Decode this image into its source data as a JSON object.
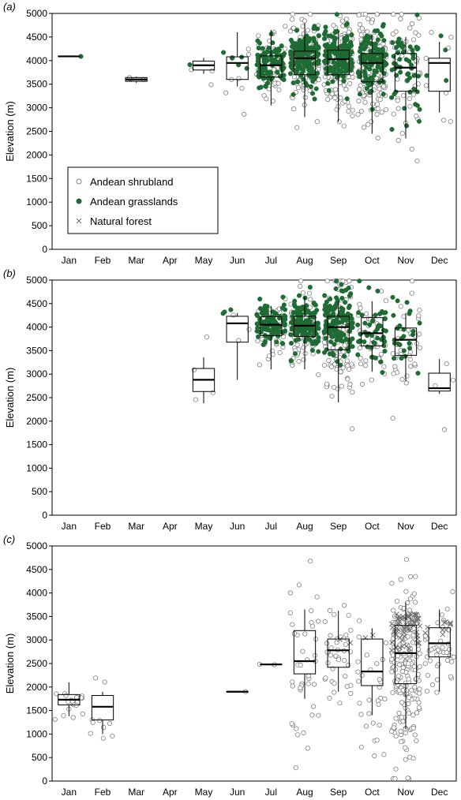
{
  "colors": {
    "grassland": "#1e6b33",
    "shrubland_stroke": "#808080",
    "forest": "#707070",
    "box": "#000000"
  },
  "legend": {
    "entries": [
      {
        "label": "Andean shrubland",
        "marker": "open-circle"
      },
      {
        "label": "Andean grasslands",
        "marker": "filled-circle"
      },
      {
        "label": "Natural forest",
        "marker": "cross"
      }
    ],
    "placement": "inside panel (a), lower-left"
  },
  "chart_data": [
    {
      "type": "box",
      "panel_label": "(a)",
      "ylabel": "Elevation (m)",
      "ylim": [
        0,
        5000
      ],
      "yticks": [
        0,
        500,
        1000,
        1500,
        2000,
        2500,
        3000,
        3500,
        4000,
        4500,
        5000
      ],
      "categories": [
        "Jan",
        "Feb",
        "Mar",
        "Apr",
        "May",
        "Jun",
        "Jul",
        "Aug",
        "Sep",
        "Oct",
        "Nov",
        "Dec"
      ],
      "boxes": [
        {
          "month": "Jan",
          "q1": 4085,
          "median": 4090,
          "q3": 4095,
          "whisker_low": 4085,
          "whisker_high": 4095
        },
        {
          "month": "Mar",
          "q1": 3560,
          "median": 3600,
          "q3": 3640,
          "whisker_low": 3530,
          "whisker_high": 3660
        },
        {
          "month": "May",
          "q1": 3800,
          "median": 3900,
          "q3": 3990,
          "whisker_low": 3720,
          "whisker_high": 4060
        },
        {
          "month": "Jun",
          "q1": 3600,
          "median": 3950,
          "q3": 4080,
          "whisker_low": 3450,
          "whisker_high": 4600
        },
        {
          "month": "Jul",
          "q1": 3650,
          "median": 3900,
          "q3": 4100,
          "whisker_low": 3050,
          "whisker_high": 4650
        },
        {
          "month": "Aug",
          "q1": 3700,
          "median": 4050,
          "q3": 4200,
          "whisker_low": 2800,
          "whisker_high": 4800
        },
        {
          "month": "Sep",
          "q1": 3700,
          "median": 4030,
          "q3": 4220,
          "whisker_low": 2700,
          "whisker_high": 4600
        },
        {
          "month": "Oct",
          "q1": 3550,
          "median": 3950,
          "q3": 4150,
          "whisker_low": 2450,
          "whisker_high": 4550
        },
        {
          "month": "Nov",
          "q1": 3350,
          "median": 3850,
          "q3": 4150,
          "whisker_low": 2350,
          "whisker_high": 4500
        },
        {
          "month": "Dec",
          "q1": 3350,
          "median": 3950,
          "q3": 4050,
          "whisker_low": 2900,
          "whisker_high": 4400
        }
      ],
      "scatter_counts": {
        "shrubland": [
          0,
          0,
          3,
          0,
          3,
          8,
          40,
          130,
          150,
          150,
          50,
          8
        ],
        "grassland": [
          1,
          0,
          0,
          0,
          1,
          5,
          100,
          170,
          160,
          120,
          55,
          4
        ],
        "forest": [
          0,
          0,
          0,
          0,
          0,
          0,
          0,
          0,
          0,
          0,
          0,
          0
        ]
      }
    },
    {
      "type": "box",
      "panel_label": "(b)",
      "ylabel": "Elevation (m)",
      "ylim": [
        0,
        5000
      ],
      "yticks": [
        0,
        500,
        1000,
        1500,
        2000,
        2500,
        3000,
        3500,
        4000,
        4500,
        5000
      ],
      "categories": [
        "Jan",
        "Feb",
        "Mar",
        "Apr",
        "May",
        "Jun",
        "Jul",
        "Aug",
        "Sep",
        "Oct",
        "Nov",
        "Dec"
      ],
      "boxes": [
        {
          "month": "May",
          "q1": 2630,
          "median": 2880,
          "q3": 3120,
          "whisker_low": 2380,
          "whisker_high": 3360
        },
        {
          "month": "Jun",
          "q1": 3680,
          "median": 4080,
          "q3": 4230,
          "whisker_low": 2880,
          "whisker_high": 4300
        },
        {
          "month": "Jul",
          "q1": 3820,
          "median": 4050,
          "q3": 4220,
          "whisker_low": 3100,
          "whisker_high": 4450
        },
        {
          "month": "Aug",
          "q1": 3800,
          "median": 4030,
          "q3": 4230,
          "whisker_low": 3100,
          "whisker_high": 4650
        },
        {
          "month": "Sep",
          "q1": 3520,
          "median": 4000,
          "q3": 4230,
          "whisker_low": 2400,
          "whisker_high": 4550
        },
        {
          "month": "Oct",
          "q1": 3600,
          "median": 3870,
          "q3": 4200,
          "whisker_low": 3050,
          "whisker_high": 4550
        },
        {
          "month": "Nov",
          "q1": 3400,
          "median": 3730,
          "q3": 3980,
          "whisker_low": 2850,
          "whisker_high": 4300
        },
        {
          "month": "Dec",
          "q1": 2640,
          "median": 2700,
          "q3": 3020,
          "whisker_low": 2580,
          "whisker_high": 3320
        }
      ],
      "scatter_counts": {
        "shrubland": [
          0,
          0,
          0,
          0,
          4,
          3,
          40,
          80,
          120,
          40,
          40,
          4
        ],
        "grassland": [
          0,
          0,
          0,
          0,
          0,
          3,
          100,
          140,
          140,
          50,
          25,
          0
        ],
        "forest": [
          0,
          0,
          0,
          0,
          0,
          0,
          0,
          0,
          0,
          0,
          0,
          0
        ]
      }
    },
    {
      "type": "box",
      "panel_label": "(c)",
      "ylabel": "Elevation (m)",
      "ylim": [
        0,
        5000
      ],
      "yticks": [
        0,
        500,
        1000,
        1500,
        2000,
        2500,
        3000,
        3500,
        4000,
        4500,
        5000
      ],
      "categories": [
        "Jan",
        "Feb",
        "Mar",
        "Apr",
        "May",
        "Jun",
        "Jul",
        "Aug",
        "Sep",
        "Oct",
        "Nov",
        "Dec"
      ],
      "boxes": [
        {
          "month": "Jan",
          "q1": 1620,
          "median": 1730,
          "q3": 1840,
          "whisker_low": 1380,
          "whisker_high": 2100
        },
        {
          "month": "Feb",
          "q1": 1300,
          "median": 1580,
          "q3": 1820,
          "whisker_low": 1000,
          "whisker_high": 1900
        },
        {
          "month": "Jun",
          "q1": 1895,
          "median": 1900,
          "q3": 1905,
          "whisker_low": 1895,
          "whisker_high": 1905
        },
        {
          "month": "Jul",
          "q1": 2475,
          "median": 2480,
          "q3": 2485,
          "whisker_low": 2475,
          "whisker_high": 2485
        },
        {
          "month": "Aug",
          "q1": 2280,
          "median": 2550,
          "q3": 3200,
          "whisker_low": 1750,
          "whisker_high": 3650
        },
        {
          "month": "Sep",
          "q1": 2420,
          "median": 2780,
          "q3": 3020,
          "whisker_low": 1900,
          "whisker_high": 3620
        },
        {
          "month": "Oct",
          "q1": 2030,
          "median": 2330,
          "q3": 3020,
          "whisker_low": 1400,
          "whisker_high": 3250
        },
        {
          "month": "Nov",
          "q1": 2070,
          "median": 2720,
          "q3": 3310,
          "whisker_low": 1100,
          "whisker_high": 3800
        },
        {
          "month": "Dec",
          "q1": 2640,
          "median": 2930,
          "q3": 3260,
          "whisker_low": 1900,
          "whisker_high": 3650
        }
      ],
      "scatter_counts": {
        "shrubland": [
          20,
          10,
          0,
          0,
          0,
          1,
          2,
          40,
          40,
          30,
          200,
          40
        ],
        "grassland": [
          0,
          0,
          0,
          0,
          0,
          0,
          0,
          0,
          0,
          0,
          0,
          0
        ],
        "forest": [
          0,
          0,
          0,
          0,
          0,
          0,
          0,
          0,
          2,
          2,
          60,
          10
        ]
      }
    }
  ]
}
